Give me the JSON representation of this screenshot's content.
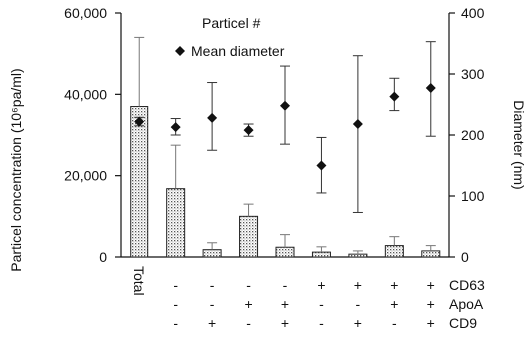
{
  "chart_data": {
    "type": "bar",
    "x": [
      "Total",
      "",
      "",
      "",
      "",
      "",
      "",
      "",
      ""
    ],
    "sign_rows": [
      {
        "label": "CD63",
        "signs": [
          "",
          "-",
          "-",
          "-",
          "-",
          "+",
          "+",
          "+",
          "+"
        ]
      },
      {
        "label": "ApoA",
        "signs": [
          "",
          "-",
          "-",
          "+",
          "+",
          "-",
          "-",
          "+",
          "+"
        ]
      },
      {
        "label": "CD9",
        "signs": [
          "",
          "-",
          "+",
          "-",
          "+",
          "-",
          "+",
          "-",
          "+"
        ]
      }
    ],
    "y_left": {
      "label": "Particel concentration (10⁶pa/ml)",
      "range": [
        0,
        60000
      ],
      "ticks": [
        0,
        20000,
        40000,
        60000
      ],
      "tick_labels": [
        "0",
        "20,000",
        "40,000",
        "60,000"
      ]
    },
    "y_right": {
      "label": "Diameter (nm)",
      "range": [
        0,
        400
      ],
      "ticks": [
        0,
        100,
        200,
        300,
        400
      ],
      "tick_labels": [
        "0",
        "100",
        "200",
        "300",
        "400"
      ]
    },
    "series": [
      {
        "name": "Particel #",
        "type": "bar",
        "axis": "left",
        "values": [
          37000,
          16800,
          1800,
          10000,
          2400,
          1200,
          700,
          2800,
          1500
        ],
        "err_upper": [
          54000,
          27500,
          3500,
          13000,
          5500,
          2500,
          1500,
          5000,
          2800
        ]
      },
      {
        "name": "Mean diameter",
        "type": "scatter",
        "marker": "diamond",
        "axis": "right",
        "values": [
          222,
          213,
          228,
          208,
          248,
          150,
          218,
          263,
          277
        ],
        "err_lower": [
          215,
          200,
          175,
          198,
          185,
          105,
          73,
          240,
          198
        ],
        "err_upper": [
          229,
          227,
          286,
          218,
          313,
          196,
          330,
          293,
          353
        ]
      }
    ],
    "legend": {
      "position": "top-center"
    },
    "grid": false
  }
}
